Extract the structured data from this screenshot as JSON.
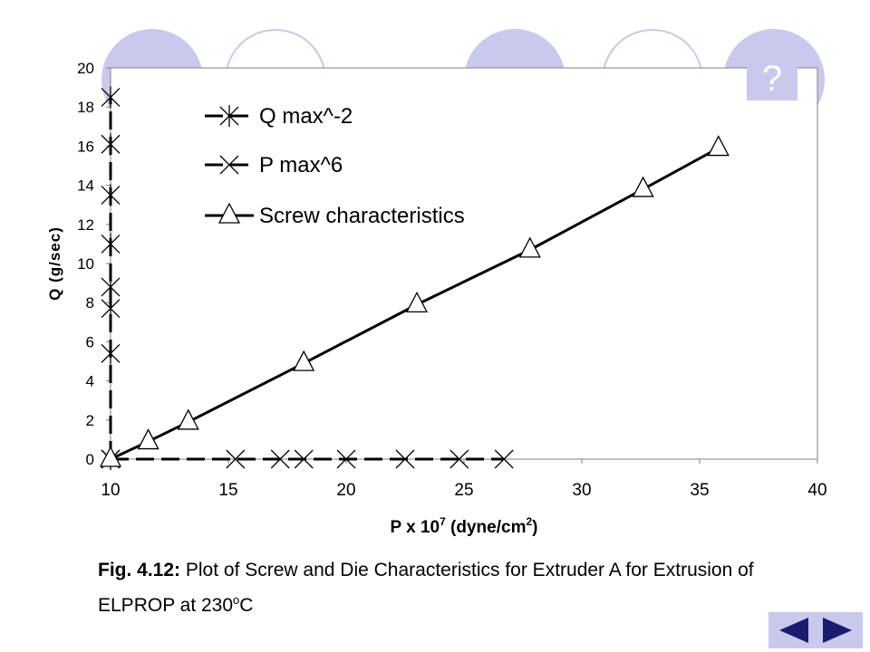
{
  "help_button": {
    "label": "?"
  },
  "caption": {
    "fig_label": "Fig. 4.12:",
    "line1": "Plot of Screw and Die Characteristics for Extruder A for Extrusion of",
    "line2_prefix": "ELPROP at 230",
    "line2_sup": "o",
    "line2_suffix": "C"
  },
  "colors": {
    "decor": "#c9c9ee",
    "line": "#000000",
    "marker_fill": "#ffffff"
  },
  "icons": {
    "help": "question-mark-icon",
    "prev": "left-triangle-icon",
    "next": "right-triangle-icon"
  },
  "chart_data": {
    "type": "line",
    "xlabel_prefix": "P x 10",
    "xlabel_sup1": "7",
    "xlabel_mid": " (dyne/cm",
    "xlabel_sup2": "2",
    "xlabel_suffix": ")",
    "ylabel": "Q (g/sec)",
    "xlim": [
      10,
      40
    ],
    "ylim": [
      0,
      20
    ],
    "x_ticks": [
      "10",
      "15",
      "20",
      "25",
      "30",
      "35",
      "40"
    ],
    "y_ticks": [
      "0",
      "2",
      "4",
      "6",
      "8",
      "10",
      "12",
      "14",
      "16",
      "18",
      "20"
    ],
    "grid": false,
    "legend_position": "top-left",
    "series": [
      {
        "name": "Q max^-2",
        "marker": "asterisk",
        "x": [
          10,
          10,
          10,
          10,
          10,
          10,
          10,
          10
        ],
        "y": [
          0,
          5.4,
          7.7,
          8.8,
          11,
          13.5,
          16.1,
          18.5
        ]
      },
      {
        "name": "P max^6",
        "marker": "x",
        "x": [
          10,
          15.3,
          17.2,
          18.2,
          20,
          22.5,
          24.8,
          26.7
        ],
        "y": [
          0,
          0,
          0,
          0,
          0,
          0,
          0,
          0
        ]
      },
      {
        "name": "Screw characteristics",
        "marker": "triangle",
        "x": [
          10,
          11.6,
          13.3,
          18.2,
          23,
          27.8,
          32.6,
          35.8
        ],
        "y": [
          0,
          0.9,
          1.9,
          4.9,
          7.9,
          10.7,
          13.8,
          15.9
        ]
      }
    ]
  }
}
